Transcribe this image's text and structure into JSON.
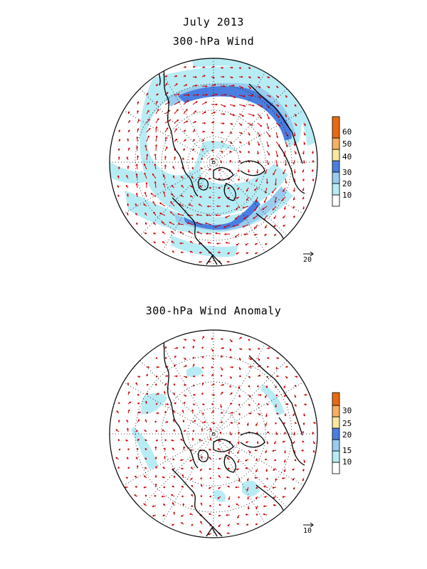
{
  "header": {
    "title": "July 2013",
    "panel1_title": "300-hPa Wind",
    "panel2_title": "300-hPa Wind Anomaly"
  },
  "panel1": {
    "name": "300-hPa Wind",
    "reference_vector_label": "20",
    "colorbar": {
      "labels": [
        "10",
        "20",
        "30",
        "40",
        "50",
        "60"
      ],
      "colors": [
        "#ffffff",
        "#b8ecf4",
        "#99ccee",
        "#4a7ee0",
        "#fbe8a0",
        "#f6b060",
        "#e86a10"
      ]
    }
  },
  "panel2": {
    "name": "300-hPa Wind Anomaly",
    "reference_vector_label": "10",
    "colorbar": {
      "labels": [
        "10",
        "15",
        "20",
        "25",
        "30"
      ],
      "colors": [
        "#ffffff",
        "#b8ecf4",
        "#99ccee",
        "#4a7ee0",
        "#fbe8a0",
        "#f6b060",
        "#e86a10"
      ]
    }
  },
  "style": {
    "arrow_color": "#cc0000",
    "light_shade": "#b8ecf4",
    "mid_shade": "#99ccee",
    "dark_shade": "#4a7ee0"
  }
}
